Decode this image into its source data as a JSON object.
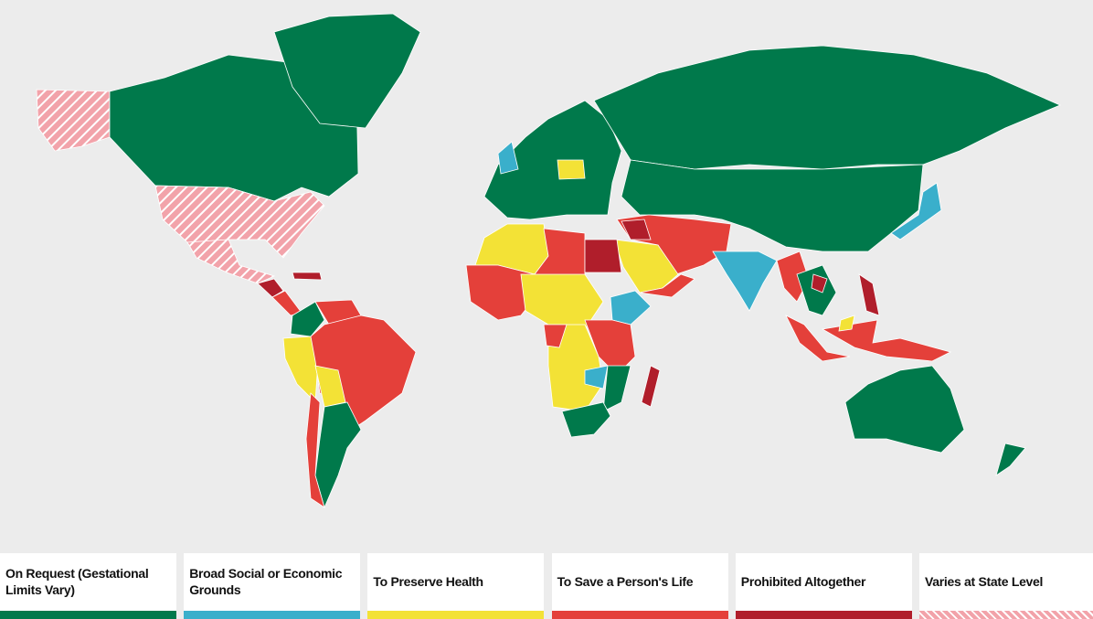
{
  "legend": {
    "items": [
      {
        "label": "On Request (Gestational Limits Vary)",
        "color": "#00794b"
      },
      {
        "label": "Broad Social or Economic Grounds",
        "color": "#3aafcb"
      },
      {
        "label": "To Preserve Health",
        "color": "#f3e236"
      },
      {
        "label": "To Save a Person's Life",
        "color": "#e4403a"
      },
      {
        "label": "Prohibited Altogether",
        "color": "#b01e2b"
      },
      {
        "label": "Varies at State Level",
        "color": "#f2a3aa",
        "pattern": "hatched"
      }
    ]
  }
}
